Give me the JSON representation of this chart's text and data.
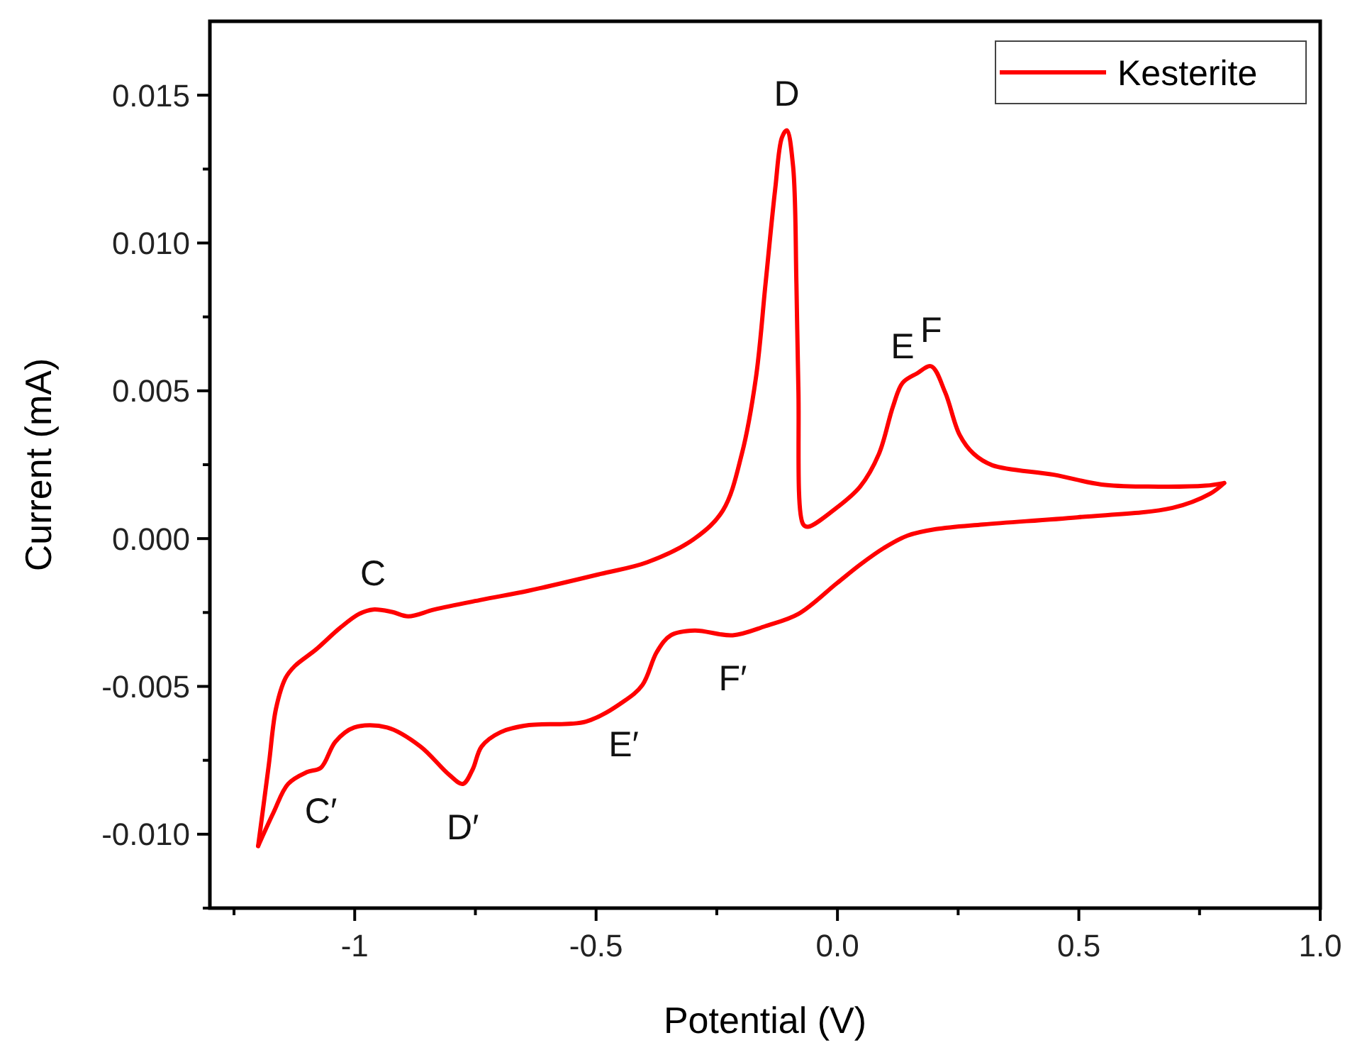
{
  "chart_data": {
    "type": "line",
    "xlabel": "Potential (V)",
    "ylabel": "Current (mA)",
    "xlim": [
      -1.3,
      1.0
    ],
    "xticks": [
      {
        "value": -1.25,
        "label": null
      },
      -1.0,
      {
        "value": -0.75,
        "label": null
      },
      -0.5,
      {
        "value": -0.25,
        "label": null
      },
      {
        "value": 0,
        "label": "0.0"
      },
      {
        "value": 0.25,
        "label": null
      },
      0.5,
      {
        "value": 0.75,
        "label": null
      },
      {
        "value": 1,
        "label": "1.0"
      }
    ],
    "ylim": [
      -0.0125,
      0.0175
    ],
    "yticks": [
      {
        "value": -0.0125,
        "label": null
      },
      {
        "value": -0.01,
        "label": "-0.010"
      },
      {
        "value": -0.0075,
        "label": null
      },
      {
        "value": -0.005,
        "label": "-0.005"
      },
      {
        "value": -0.0025,
        "label": null
      },
      {
        "value": 0,
        "label": "0.000"
      },
      {
        "value": 0.0025,
        "label": null
      },
      {
        "value": 0.005,
        "label": "0.005"
      },
      {
        "value": 0.0075,
        "label": null
      },
      {
        "value": 0.01,
        "label": "0.010"
      },
      {
        "value": 0.0125,
        "label": null
      },
      {
        "value": 0.015,
        "label": "0.015"
      }
    ],
    "grid": false,
    "legend": "top right",
    "marker": "none",
    "line_style": "solid",
    "series": [
      {
        "name": "Kesterite",
        "color": "#ff0000",
        "x": [
          -1.2,
          -1.178,
          -1.163,
          -1.143,
          -1.124,
          -1.08,
          -1.031,
          -0.991,
          -0.962,
          -0.923,
          -0.889,
          -0.835,
          -0.737,
          -0.639,
          -0.492,
          -0.394,
          -0.296,
          -0.237,
          -0.198,
          -0.169,
          -0.149,
          -0.129,
          -0.115,
          -0.105,
          -0.092,
          -0.085,
          -0.081,
          -0.071,
          -0.061,
          -0.002,
          0.047,
          0.086,
          0.115,
          0.135,
          0.165,
          0.194,
          0.223,
          0.253,
          0.282,
          0.321,
          0.448,
          0.547,
          0.644,
          0.762,
          0.801
        ],
        "values": [
          -0.0104,
          -0.00766,
          -0.00575,
          -0.00471,
          -0.00431,
          -0.00375,
          -0.00303,
          -0.00255,
          -0.0024,
          -0.00248,
          -0.00263,
          -0.0024,
          -0.00207,
          -0.00176,
          -0.0012,
          -0.0008,
          0,
          0.00096,
          0.00287,
          0.00543,
          0.00862,
          0.01182,
          0.01357,
          0.01381,
          0.01261,
          0.00862,
          0.00511,
          0.00048,
          0.0004,
          0.00104,
          0.00176,
          0.00287,
          0.00447,
          0.00527,
          0.00559,
          0.00583,
          0.00495,
          0.00351,
          0.00287,
          0.00248,
          0.00216,
          0.00183,
          0.00176,
          0.00179,
          0.00188
        ]
      },
      {
        "color": "#ff0000",
        "x": [
          0.801,
          0.772,
          0.694,
          0.497,
          0.302,
          0.204,
          0.145,
          0.096,
          0.047,
          -0.002,
          -0.081,
          -0.149,
          -0.217,
          -0.296,
          -0.345,
          -0.374,
          -0.404,
          -0.443,
          -0.521,
          -0.639,
          -0.698,
          -0.737,
          -0.756,
          -0.776,
          -0.805,
          -0.864,
          -0.933,
          -1.001,
          -1.04,
          -1.07,
          -1.099,
          -1.138,
          -1.168,
          -1.2
        ],
        "values": [
          0.00188,
          0.00152,
          0.00104,
          0.00072,
          0.00048,
          0.00032,
          0.0001,
          -0.00032,
          -0.00088,
          -0.00152,
          -0.00255,
          -0.00296,
          -0.00327,
          -0.00311,
          -0.00327,
          -0.00383,
          -0.00495,
          -0.00551,
          -0.00619,
          -0.00631,
          -0.00655,
          -0.00703,
          -0.00782,
          -0.0083,
          -0.00798,
          -0.00703,
          -0.00639,
          -0.00639,
          -0.00687,
          -0.00775,
          -0.0079,
          -0.0083,
          -0.00926,
          -0.0104
        ]
      }
    ],
    "annotations": [
      {
        "text": "C",
        "x": -0.962,
        "y": -0.0024
      },
      {
        "text": "D",
        "x": -0.105,
        "y": 0.01381
      },
      {
        "text": "E",
        "x": 0.135,
        "y": 0.00527
      },
      {
        "text": "F",
        "x": 0.194,
        "y": 0.00583
      },
      {
        "text": "C′",
        "x": -1.07,
        "y": -0.00775
      },
      {
        "text": "D′",
        "x": -0.776,
        "y": -0.0083
      },
      {
        "text": "E′",
        "x": -0.443,
        "y": -0.00551
      },
      {
        "text": "F′",
        "x": -0.217,
        "y": -0.00327
      }
    ]
  }
}
